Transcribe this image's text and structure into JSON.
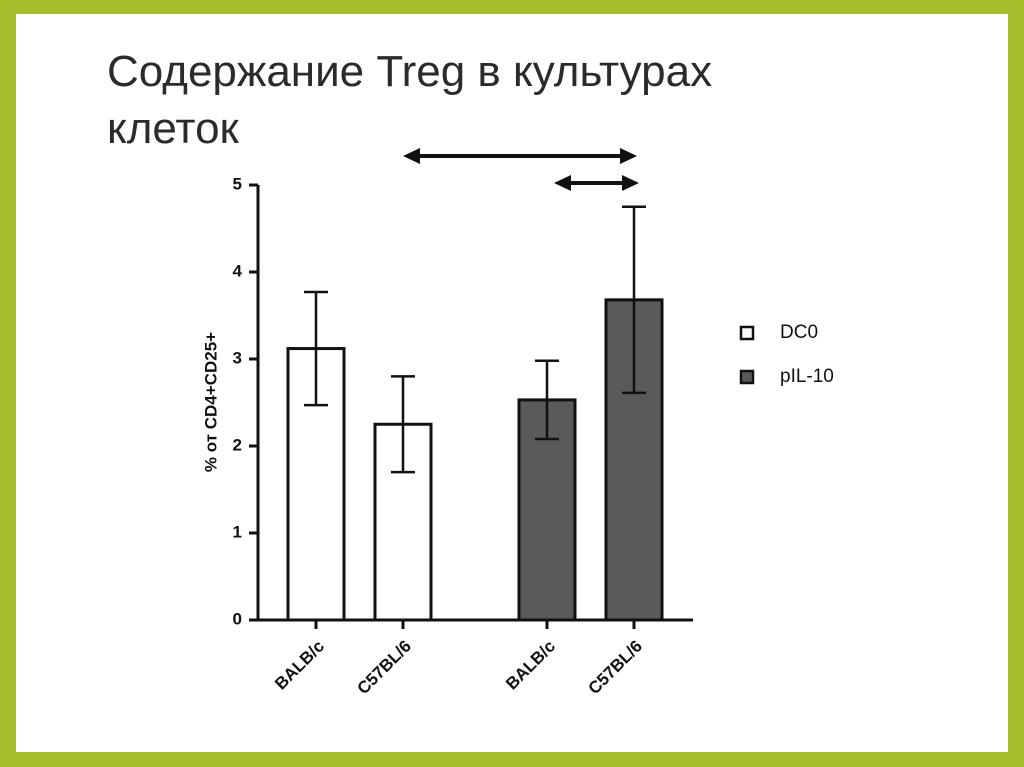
{
  "chart_data": {
    "type": "bar",
    "title": [
      "Содержание Treg  в культурах",
      "клеток"
    ],
    "ylabel": "% от CD4+CD25+",
    "categories": [
      "BALB/c",
      "C57BL/6",
      "BALB/c",
      "C57BL/6"
    ],
    "series": [
      {
        "name": "DC0",
        "color": "#ffffff",
        "values": [
          3.12,
          2.25,
          null,
          null
        ],
        "errors": [
          0.65,
          0.55,
          null,
          null
        ]
      },
      {
        "name": "pIL-10",
        "color": "#5a5a5a",
        "values": [
          null,
          null,
          2.53,
          3.68
        ],
        "errors": [
          null,
          null,
          0.45,
          1.07
        ]
      }
    ],
    "ylim": [
      0,
      5
    ],
    "yticks": [
      0,
      1,
      2,
      3,
      4,
      5
    ],
    "grid": false,
    "legend": "right"
  }
}
